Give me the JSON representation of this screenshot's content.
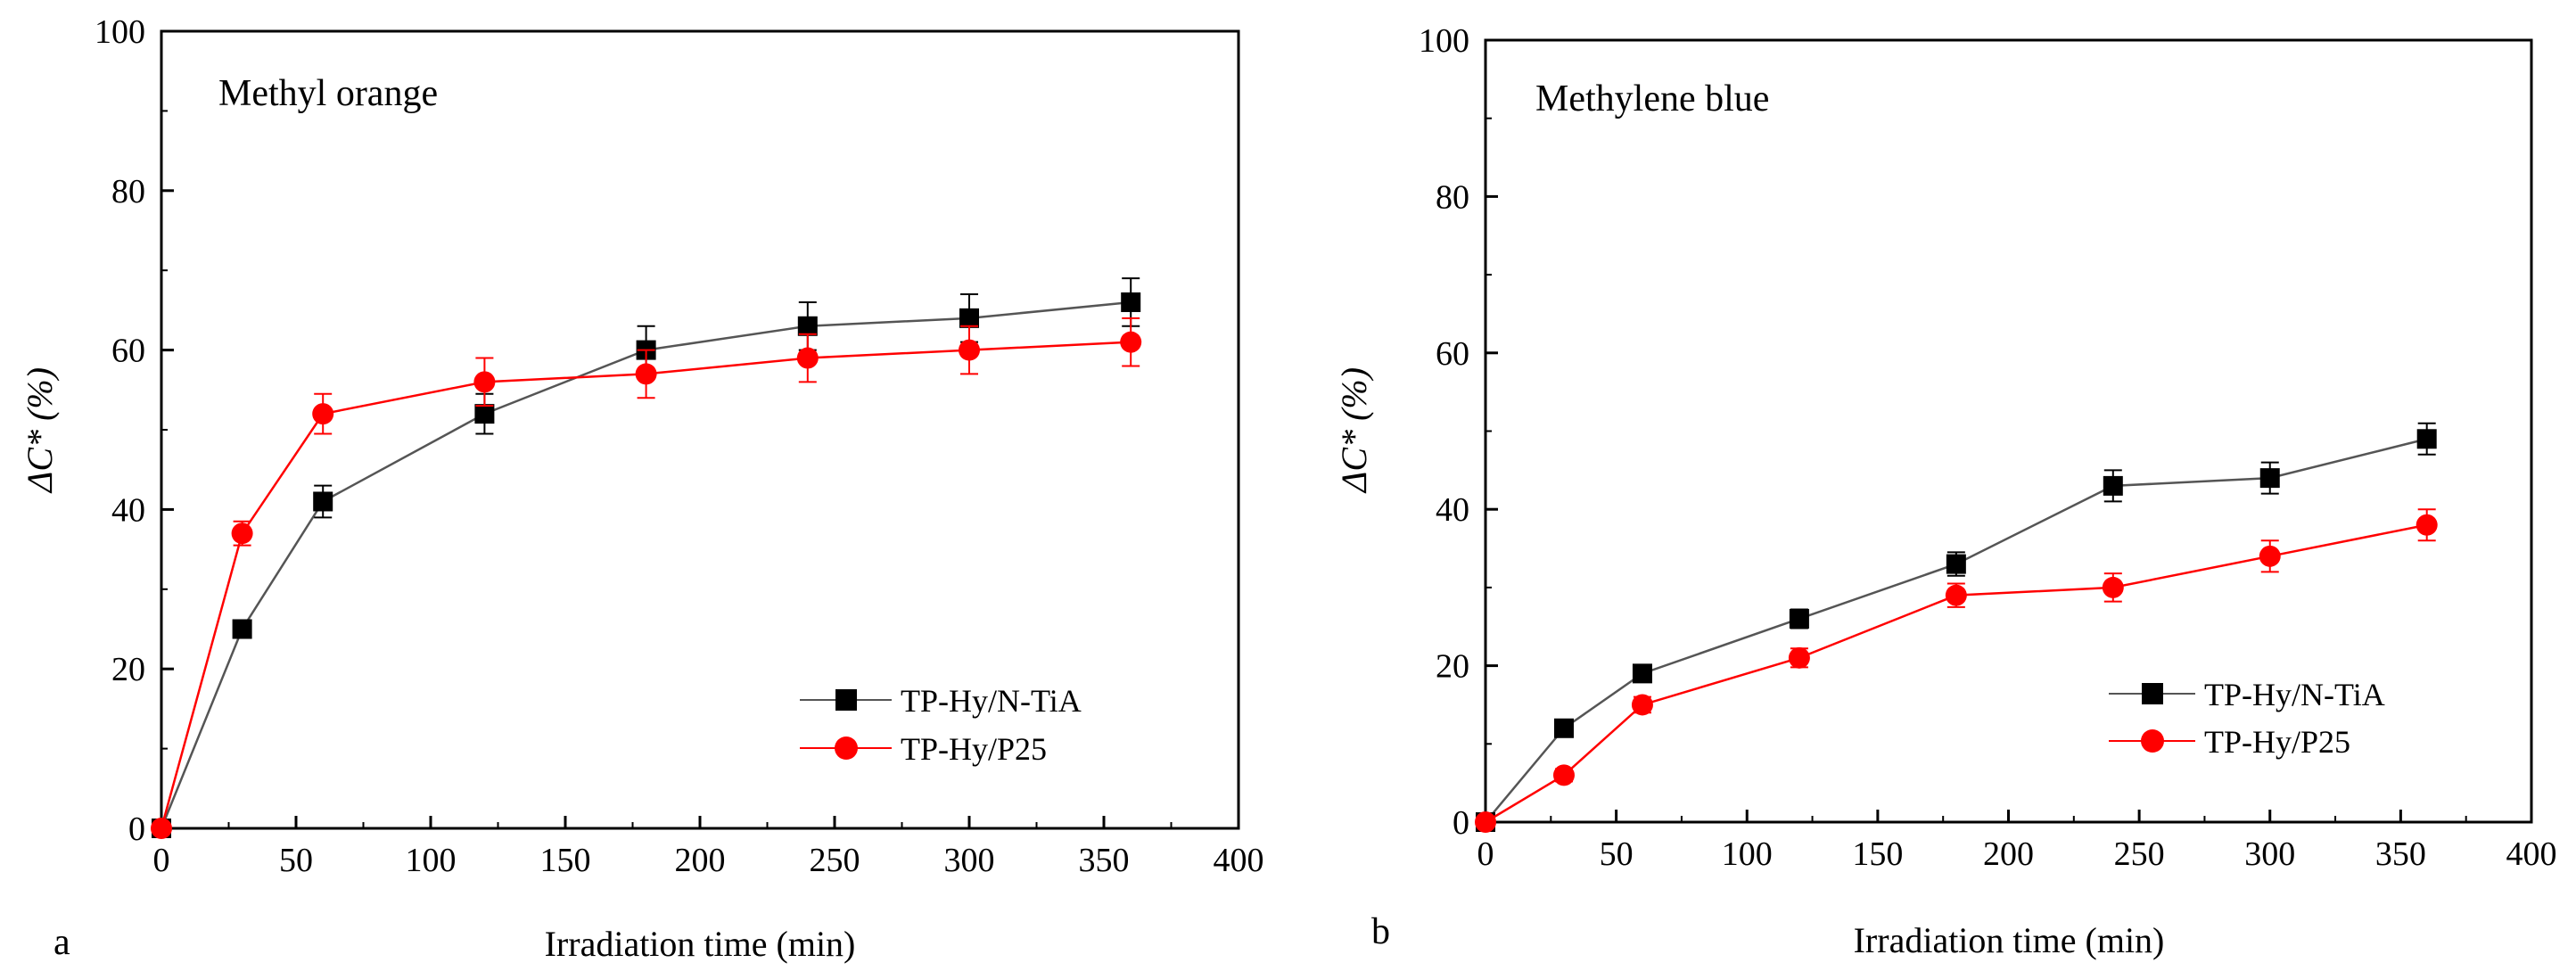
{
  "colors": {
    "series1": "#000000",
    "series1_line": "#555555",
    "series2": "#ff0000"
  },
  "chart_data": [
    {
      "type": "line",
      "panel_letter": "a",
      "title": "Methyl orange",
      "xlabel": "Irradiation time (min)",
      "ylabel": "ΔC* (%)",
      "xlim": [
        0,
        400
      ],
      "ylim": [
        0,
        100
      ],
      "xticks": [
        0,
        50,
        100,
        150,
        200,
        250,
        300,
        350,
        400
      ],
      "yticks": [
        0,
        20,
        40,
        60,
        80,
        100
      ],
      "legend_position": "bottom-right",
      "series": [
        {
          "name": "TP-Hy/N-TiA",
          "marker": "square",
          "x": [
            0,
            30,
            60,
            120,
            180,
            240,
            300,
            360
          ],
          "y": [
            0,
            25,
            41,
            52,
            60,
            63,
            64,
            66
          ],
          "err": [
            0,
            1,
            2,
            2.5,
            3,
            3,
            3,
            3
          ]
        },
        {
          "name": "TP-Hy/P25",
          "marker": "circle",
          "x": [
            0,
            30,
            60,
            120,
            180,
            240,
            300,
            360
          ],
          "y": [
            0,
            37,
            52,
            56,
            57,
            59,
            60,
            61
          ],
          "err": [
            0,
            1.5,
            2.5,
            3,
            3,
            3,
            3,
            3
          ]
        }
      ]
    },
    {
      "type": "line",
      "panel_letter": "b",
      "title": "Methylene blue",
      "xlabel": "Irradiation time (min)",
      "ylabel": "ΔC* (%)",
      "xlim": [
        0,
        400
      ],
      "ylim": [
        0,
        100
      ],
      "xticks": [
        0,
        50,
        100,
        150,
        200,
        250,
        300,
        350,
        400
      ],
      "yticks": [
        0,
        20,
        40,
        60,
        80,
        100
      ],
      "legend_position": "bottom-right",
      "series": [
        {
          "name": "TP-Hy/N-TiA",
          "marker": "square",
          "x": [
            0,
            30,
            60,
            120,
            180,
            240,
            300,
            360
          ],
          "y": [
            0,
            12,
            19,
            26,
            33,
            43,
            44,
            49
          ],
          "err": [
            0,
            0.8,
            1,
            1.2,
            1.5,
            2,
            2,
            2
          ]
        },
        {
          "name": "TP-Hy/P25",
          "marker": "circle",
          "x": [
            0,
            30,
            60,
            120,
            180,
            240,
            300,
            360
          ],
          "y": [
            0,
            6,
            15,
            21,
            29,
            30,
            34,
            38
          ],
          "err": [
            0,
            0.8,
            1,
            1.2,
            1.5,
            1.8,
            2,
            2
          ]
        }
      ]
    }
  ]
}
